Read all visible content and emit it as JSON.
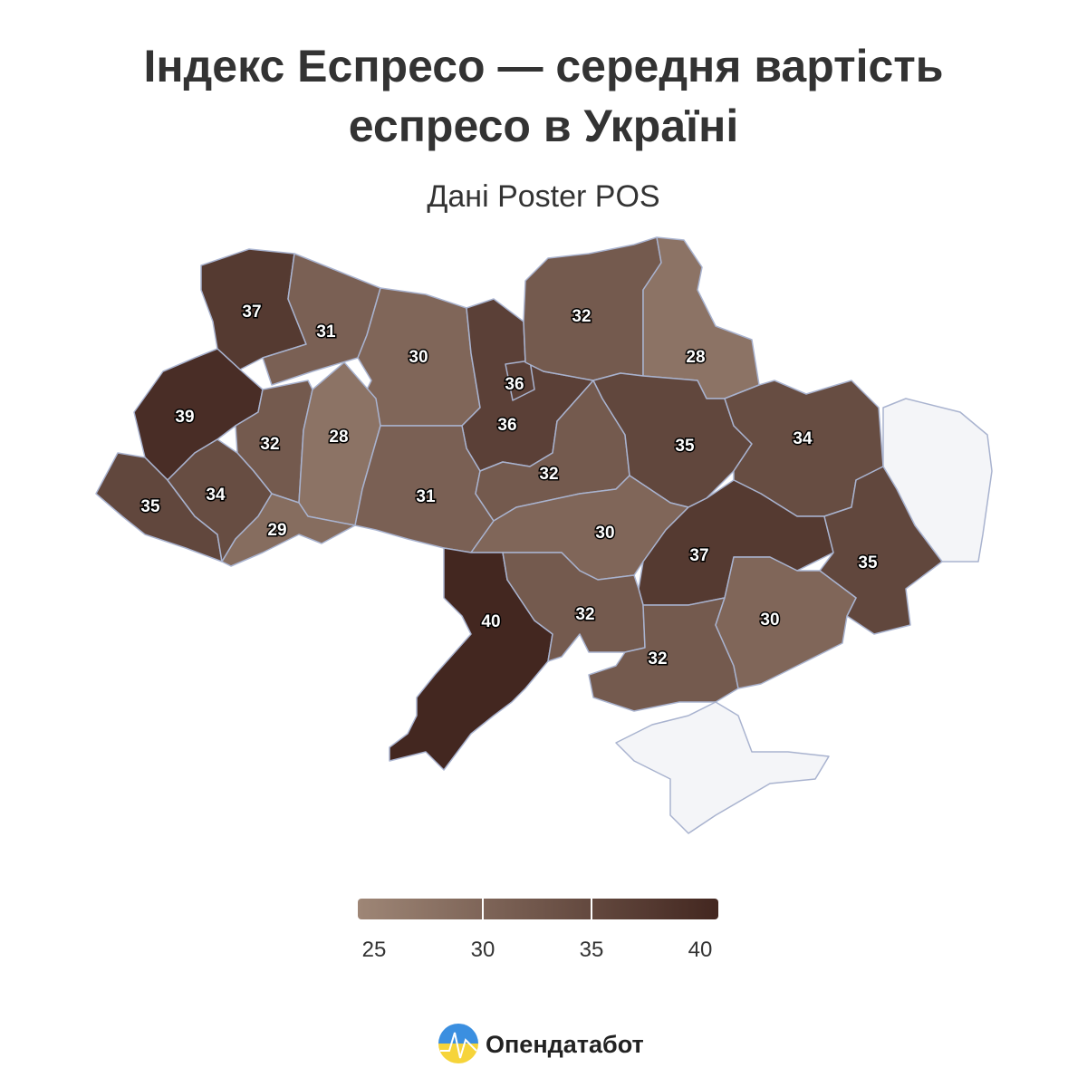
{
  "chart_data": {
    "type": "choropleth",
    "title": "Індекс Еспресо — середня вартість еспресо в Україні",
    "subtitle": "Дані Poster POS",
    "values": [
      37,
      31,
      30,
      36,
      36,
      32,
      28,
      39,
      32,
      28,
      31,
      32,
      35,
      34,
      35,
      34,
      29,
      30,
      37,
      35,
      40,
      32,
      32,
      30
    ],
    "colorlim": [
      25,
      40
    ],
    "colorticks": [
      25,
      30,
      35,
      40
    ],
    "colors": [
      "#9e8676",
      "#432720"
    ],
    "no_data_color": "#f4f5f8"
  },
  "footer": {
    "brand": "Опендатабот"
  }
}
